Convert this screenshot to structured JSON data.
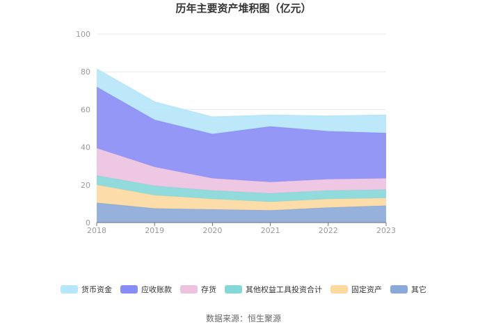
{
  "chart_data": {
    "type": "area",
    "stacked": true,
    "title": "历年主要资产堆积图（亿元）",
    "source": "数据来源：恒生聚源",
    "x": [
      "2018",
      "2019",
      "2020",
      "2021",
      "2022",
      "2023"
    ],
    "ylim": [
      0,
      100
    ],
    "yticks": [
      0,
      20,
      40,
      60,
      80,
      100
    ],
    "grid": true,
    "legend_position": "bottom",
    "series": [
      {
        "name": "其它",
        "color": "#8aa9d8",
        "values": [
          10.5,
          7.5,
          7.0,
          6.5,
          8.0,
          9.0
        ]
      },
      {
        "name": "固定资产",
        "color": "#fcd9a0",
        "values": [
          9.5,
          7.0,
          5.5,
          4.5,
          4.5,
          4.0
        ]
      },
      {
        "name": "其他权益工具投资合计",
        "color": "#86d7d8",
        "values": [
          5.0,
          5.0,
          4.5,
          4.5,
          4.5,
          4.5
        ]
      },
      {
        "name": "存货",
        "color": "#ecc2df",
        "values": [
          14.5,
          10.0,
          6.5,
          6.0,
          6.0,
          6.0
        ]
      },
      {
        "name": "应收账款",
        "color": "#8a8cf5",
        "values": [
          32.5,
          25.0,
          23.5,
          29.5,
          25.5,
          24.0
        ]
      },
      {
        "name": "货币资金",
        "color": "#b5e6fa",
        "values": [
          9.5,
          9.5,
          9.0,
          6.0,
          8.0,
          9.5
        ]
      }
    ],
    "legend_order": [
      "货币资金",
      "应收账款",
      "存货",
      "其他权益工具投资合计",
      "固定资产",
      "其它"
    ]
  }
}
